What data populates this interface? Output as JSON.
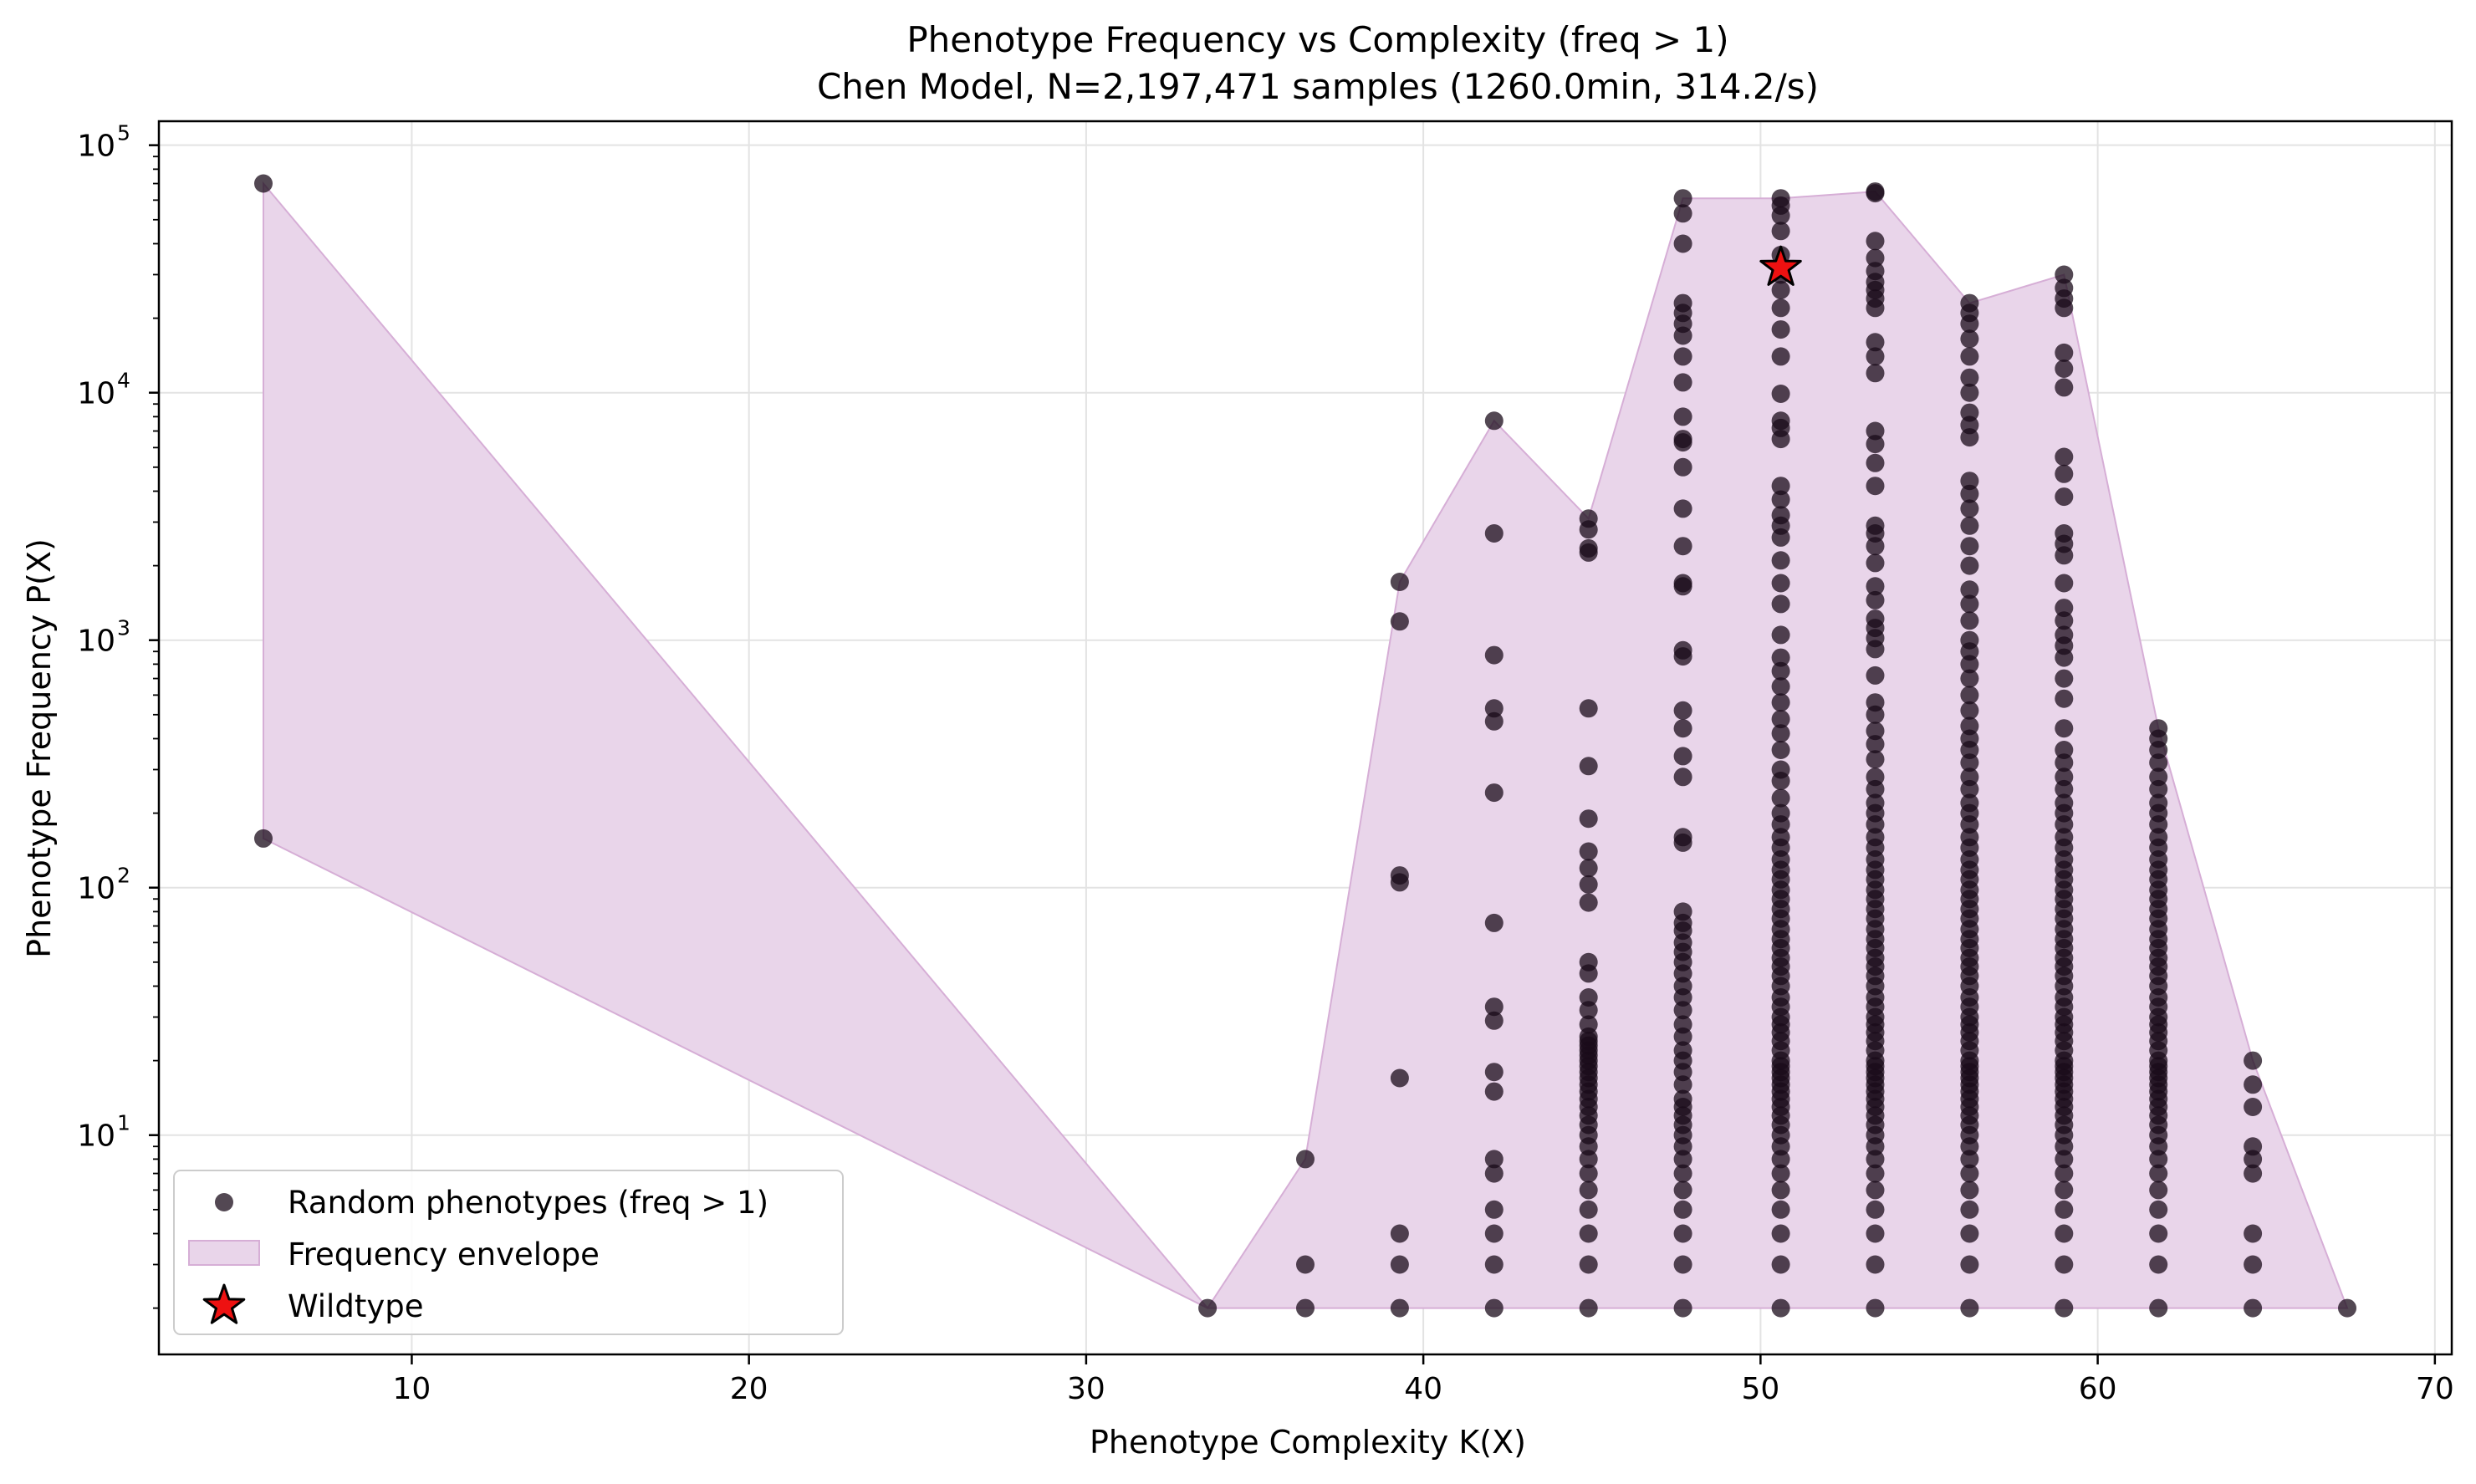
{
  "chart_data": {
    "type": "scatter",
    "title": "Phenotype Frequency vs Complexity (freq > 1)",
    "subtitle": "Chen Model, N=2,197,471 samples (1260.0min, 314.2/s)",
    "xlabel": "Phenotype Complexity K(X)",
    "ylabel": "Phenotype Frequency P(X)",
    "xscale": "linear",
    "yscale": "log",
    "xlim": [
      2.5,
      70.5
    ],
    "ylim": [
      1.3,
      125000
    ],
    "xticks": [
      10,
      20,
      30,
      40,
      50,
      60,
      70
    ],
    "xtick_labels": [
      "10",
      "20",
      "30",
      "40",
      "50",
      "60",
      "70"
    ],
    "yticks": [
      10,
      100,
      1000,
      10000,
      100000
    ],
    "ytick_labels": [
      "10",
      "10",
      "10",
      "10",
      "10"
    ],
    "ytick_exponents": [
      "1",
      "2",
      "3",
      "4",
      "5"
    ],
    "grid": true,
    "legend_position": "lower-left",
    "colors": {
      "points": "#1a0b19",
      "envelope_fill": "#e9d5ea",
      "envelope_edge": "#d6aed6",
      "wildtype": "#ee1111",
      "grid": "#e3e3e3"
    },
    "series": [
      {
        "name": "Random phenotypes (freq > 1)",
        "kind": "scatter",
        "columns": [
          {
            "x": 5.6,
            "y": [
              70000,
              158
            ]
          },
          {
            "x": 33.6,
            "y": [
              2
            ]
          },
          {
            "x": 36.5,
            "y": [
              2,
              3,
              8
            ]
          },
          {
            "x": 39.3,
            "y": [
              2,
              3,
              4,
              17,
              105,
              112,
              1190,
              1720
            ]
          },
          {
            "x": 42.1,
            "y": [
              2,
              3,
              4,
              5,
              7,
              8,
              15,
              18,
              29,
              33,
              72,
              242,
              470,
              530,
              870,
              2700,
              7700
            ]
          },
          {
            "x": 44.9,
            "y": [
              2,
              3,
              4,
              5,
              6,
              7,
              8,
              9,
              10,
              11,
              12,
              13,
              14,
              15,
              16,
              17,
              18,
              19,
              20,
              21,
              22,
              23,
              24,
              25,
              28,
              32,
              36,
              45,
              50,
              87,
              103,
              120,
              140,
              190,
              310,
              530,
              2260,
              2350,
              2800,
              3100
            ]
          },
          {
            "x": 47.7,
            "y": [
              2,
              3,
              4,
              5,
              6,
              7,
              8,
              9,
              10,
              11,
              12,
              13,
              14,
              16,
              18,
              20,
              22,
              25,
              28,
              32,
              36,
              40,
              45,
              50,
              55,
              60,
              67,
              72,
              80,
              152,
              160,
              280,
              340,
              440,
              520,
              860,
              910,
              1650,
              1700,
              2400,
              3400,
              5000,
              6300,
              6500,
              8000,
              11000,
              14000,
              17000,
              19000,
              21000,
              23000,
              40000,
              53000,
              61000
            ]
          },
          {
            "x": 50.6,
            "y": [
              2,
              3,
              4,
              5,
              6,
              7,
              8,
              9,
              10,
              11,
              12,
              13,
              14,
              15,
              16,
              17,
              18,
              19,
              20,
              22,
              24,
              26,
              28,
              30,
              33,
              36,
              40,
              44,
              48,
              52,
              57,
              62,
              68,
              75,
              82,
              90,
              98,
              108,
              118,
              130,
              145,
              160,
              180,
              200,
              230,
              270,
              300,
              360,
              420,
              480,
              560,
              650,
              750,
              850,
              1050,
              1400,
              1700,
              2100,
              2600,
              2900,
              3200,
              3700,
              4200,
              6500,
              7200,
              7700,
              9900,
              14000,
              18000,
              22000,
              26000,
              30000,
              36000,
              45000,
              52000,
              57000,
              61000
            ]
          },
          {
            "x": 53.4,
            "y": [
              2,
              3,
              4,
              5,
              6,
              7,
              8,
              9,
              10,
              11,
              12,
              13,
              14,
              15,
              16,
              17,
              18,
              19,
              20,
              22,
              24,
              26,
              28,
              30,
              33,
              36,
              40,
              44,
              48,
              52,
              57,
              62,
              68,
              75,
              82,
              90,
              98,
              108,
              118,
              130,
              145,
              160,
              180,
              200,
              220,
              250,
              280,
              330,
              380,
              430,
              500,
              560,
              720,
              920,
              1020,
              1120,
              1220,
              1450,
              1650,
              2050,
              2400,
              2700,
              2900,
              4200,
              5200,
              6200,
              7000,
              12000,
              14000,
              16000,
              22000,
              24000,
              26000,
              28000,
              31000,
              35000,
              41000,
              64000,
              65000
            ]
          },
          {
            "x": 56.2,
            "y": [
              2,
              3,
              4,
              5,
              6,
              7,
              8,
              9,
              10,
              11,
              12,
              13,
              14,
              15,
              16,
              17,
              18,
              19,
              20,
              22,
              24,
              26,
              28,
              30,
              33,
              36,
              40,
              44,
              48,
              52,
              57,
              62,
              68,
              75,
              82,
              90,
              98,
              108,
              118,
              130,
              145,
              160,
              180,
              200,
              220,
              250,
              280,
              320,
              360,
              400,
              450,
              520,
              600,
              700,
              800,
              900,
              1000,
              1200,
              1400,
              1600,
              2000,
              2400,
              2900,
              3400,
              3900,
              4400,
              6600,
              7400,
              8300,
              10000,
              11500,
              14000,
              16500,
              19000,
              21000,
              23000
            ]
          },
          {
            "x": 59.0,
            "y": [
              2,
              3,
              4,
              5,
              6,
              7,
              8,
              9,
              10,
              11,
              12,
              13,
              14,
              15,
              16,
              17,
              18,
              19,
              20,
              22,
              24,
              26,
              28,
              30,
              33,
              36,
              40,
              44,
              48,
              52,
              57,
              62,
              68,
              75,
              82,
              90,
              98,
              108,
              118,
              130,
              145,
              160,
              180,
              200,
              220,
              250,
              280,
              320,
              360,
              440,
              580,
              700,
              850,
              950,
              1050,
              1200,
              1350,
              1700,
              2200,
              2450,
              2700,
              3800,
              4700,
              5500,
              10500,
              12500,
              14500,
              22000,
              24000,
              26500,
              30000
            ]
          },
          {
            "x": 61.8,
            "y": [
              2,
              3,
              4,
              5,
              6,
              7,
              8,
              9,
              10,
              11,
              12,
              13,
              14,
              15,
              16,
              17,
              18,
              19,
              20,
              22,
              24,
              26,
              28,
              30,
              33,
              36,
              40,
              44,
              48,
              52,
              57,
              62,
              68,
              75,
              82,
              90,
              98,
              108,
              118,
              130,
              145,
              160,
              180,
              200,
              220,
              250,
              280,
              320,
              360,
              400,
              440
            ]
          },
          {
            "x": 64.6,
            "y": [
              2,
              3,
              4,
              7,
              8,
              9,
              13,
              16,
              20
            ]
          },
          {
            "x": 67.4,
            "y": [
              2
            ]
          }
        ]
      },
      {
        "name": "Frequency envelope",
        "kind": "area",
        "upper": [
          [
            5.6,
            70000
          ],
          [
            33.6,
            2
          ],
          [
            36.5,
            8
          ],
          [
            39.3,
            1720
          ],
          [
            42.1,
            7700
          ],
          [
            44.9,
            3100
          ],
          [
            47.7,
            61000
          ],
          [
            50.6,
            61000
          ],
          [
            53.4,
            65000
          ],
          [
            56.2,
            23000
          ],
          [
            59.0,
            30000
          ],
          [
            61.8,
            440
          ],
          [
            64.6,
            20
          ],
          [
            67.4,
            2
          ]
        ],
        "lower": [
          [
            5.6,
            158
          ],
          [
            33.6,
            2
          ],
          [
            36.5,
            2
          ],
          [
            39.3,
            2
          ],
          [
            42.1,
            2
          ],
          [
            44.9,
            2
          ],
          [
            47.7,
            2
          ],
          [
            50.6,
            2
          ],
          [
            53.4,
            2
          ],
          [
            56.2,
            2
          ],
          [
            59.0,
            2
          ],
          [
            61.8,
            2
          ],
          [
            64.6,
            2
          ],
          [
            67.4,
            2
          ]
        ]
      },
      {
        "name": "Wildtype",
        "kind": "marker",
        "marker": "star",
        "points": [
          {
            "x": 50.6,
            "y": 32000
          }
        ]
      }
    ]
  }
}
